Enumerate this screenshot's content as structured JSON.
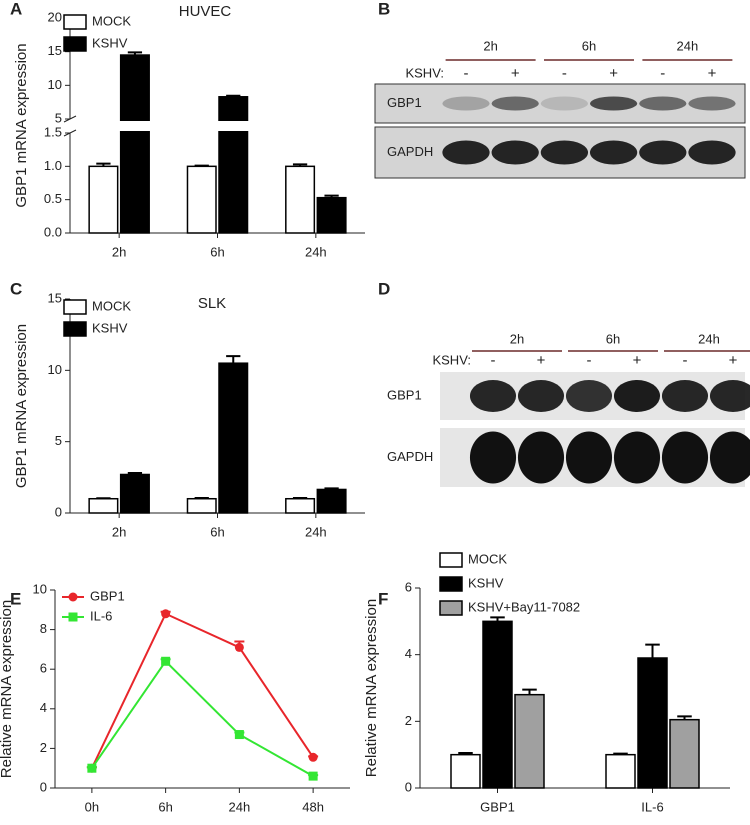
{
  "chart_data": [
    {
      "type": "bar",
      "panel": "A",
      "title": "HUVEC",
      "y_label": "GBP1 mRNA expression",
      "categories": [
        "2h",
        "6h",
        "24h"
      ],
      "series": [
        {
          "name": "MOCK",
          "color": "#ffffff",
          "values": [
            1.0,
            1.0,
            1.0
          ],
          "errors": [
            0.04,
            0.01,
            0.03
          ]
        },
        {
          "name": "KSHV",
          "color": "#000000",
          "values": [
            14.5,
            8.3,
            0.53
          ],
          "errors": [
            0.4,
            0.15,
            0.03
          ]
        }
      ],
      "ylim": [
        0,
        1.5
      ],
      "yticks": [
        {
          "value": 0,
          "label": "0.0"
        },
        0.5,
        {
          "value": 1,
          "label": "1.0"
        },
        1.5
      ],
      "y_break": {
        "ylim": [
          5,
          20
        ],
        "yticks": [
          5,
          10,
          15,
          20
        ]
      }
    },
    {
      "type": "bar",
      "panel": "C",
      "title": "SLK",
      "y_label": "GBP1 mRNA expression",
      "categories": [
        "2h",
        "6h",
        "24h"
      ],
      "series": [
        {
          "name": "MOCK",
          "color": "#ffffff",
          "values": [
            1.0,
            1.0,
            1.0
          ],
          "errors": [
            0.03,
            0.05,
            0.05
          ]
        },
        {
          "name": "KSHV",
          "color": "#000000",
          "values": [
            2.7,
            10.5,
            1.65
          ],
          "errors": [
            0.1,
            0.5,
            0.08
          ]
        }
      ],
      "ylim": [
        0,
        15
      ],
      "yticks": [
        0,
        5,
        10,
        15
      ]
    },
    {
      "type": "line",
      "panel": "E",
      "y_label": "Relative mRNA expression",
      "categories": [
        "0h",
        "6h",
        "24h",
        "48h"
      ],
      "series": [
        {
          "name": "GBP1",
          "color": "#e8262b",
          "marker": "circle",
          "values": [
            1.0,
            8.8,
            7.1,
            1.55
          ],
          "errors": [
            0.05,
            0.1,
            0.3,
            0.05
          ]
        },
        {
          "name": "IL-6",
          "color": "#33e633",
          "marker": "square",
          "values": [
            1.0,
            6.4,
            2.7,
            0.6
          ],
          "errors": [
            0.05,
            0.1,
            0.1,
            0.05
          ]
        }
      ],
      "ylim": [
        0,
        10
      ],
      "yticks": [
        0,
        2,
        4,
        6,
        8,
        10
      ]
    },
    {
      "type": "bar",
      "panel": "F",
      "y_label": "Relative mRNA expression",
      "categories": [
        "GBP1",
        "IL-6"
      ],
      "series": [
        {
          "name": "MOCK",
          "color": "#ffffff",
          "values": [
            1.0,
            1.0
          ],
          "errors": [
            0.05,
            0.03
          ]
        },
        {
          "name": "KSHV",
          "color": "#000000",
          "values": [
            5.0,
            3.9
          ],
          "errors": [
            0.12,
            0.4
          ]
        },
        {
          "name": "KSHV+Bay11-7082",
          "color": "#a0a0a0",
          "values": [
            2.8,
            2.05
          ],
          "errors": [
            0.15,
            0.1
          ]
        }
      ],
      "ylim": [
        0,
        6
      ],
      "yticks": [
        0,
        2,
        4,
        6
      ]
    }
  ],
  "blots": [
    {
      "panel": "B",
      "time_labels": [
        "2h",
        "6h",
        "24h"
      ],
      "kshv_label": "KSHV:",
      "lane_signs": [
        "-",
        "+",
        "-",
        "+",
        "-",
        "+"
      ],
      "rows": [
        "GBP1",
        "GAPDH"
      ]
    },
    {
      "panel": "D",
      "time_labels": [
        "2h",
        "6h",
        "24h"
      ],
      "kshv_label": "KSHV:",
      "lane_signs": [
        "-",
        "+",
        "-",
        "+",
        "-",
        "+"
      ],
      "rows": [
        "GBP1",
        "GAPDH"
      ]
    }
  ]
}
